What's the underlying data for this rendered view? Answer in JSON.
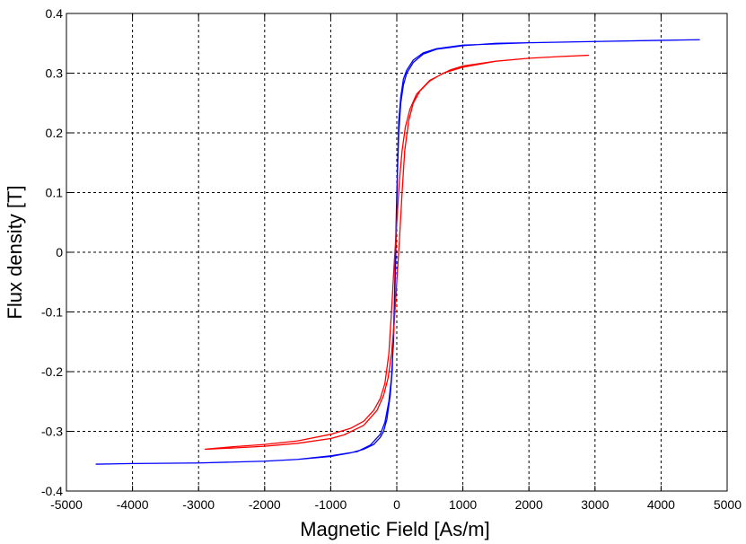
{
  "chart_data": {
    "type": "line",
    "title": "",
    "xlabel": "Magnetic Field [As/m]",
    "ylabel": "Flux density [T]",
    "xlim": [
      -5000,
      5000
    ],
    "ylim": [
      -0.4,
      0.4
    ],
    "x_ticks": [
      -5000,
      -4000,
      -3000,
      -2000,
      -1000,
      0,
      1000,
      2000,
      3000,
      4000,
      5000
    ],
    "y_ticks": [
      -0.4,
      -0.3,
      -0.2,
      -0.1,
      0,
      0.1,
      0.2,
      0.3,
      0.4
    ],
    "x_tick_labels": [
      "-5000",
      "-4000",
      "-3000",
      "-2000",
      "-1000",
      "0",
      "1000",
      "2000",
      "3000",
      "4000",
      "5000"
    ],
    "y_tick_labels": [
      "-0.4",
      "-0.3",
      "-0.2",
      "-0.1",
      "0",
      "0.1",
      "0.2",
      "0.3",
      "0.4"
    ],
    "grid": true,
    "grid_style": "dashed",
    "legend": "none",
    "series": [
      {
        "color": "#0000ff",
        "points": [
          [
            -4550,
            -0.355
          ],
          [
            -4000,
            -0.354
          ],
          [
            -3000,
            -0.353
          ],
          [
            -2000,
            -0.35
          ],
          [
            -1500,
            -0.347
          ],
          [
            -1000,
            -0.342
          ],
          [
            -700,
            -0.336
          ],
          [
            -500,
            -0.33
          ],
          [
            -350,
            -0.322
          ],
          [
            -250,
            -0.31
          ],
          [
            -200,
            -0.3
          ],
          [
            -150,
            -0.28
          ],
          [
            -100,
            -0.24
          ],
          [
            -70,
            -0.2
          ],
          [
            -40,
            -0.1
          ],
          [
            -20,
            0
          ],
          [
            0,
            0.1
          ],
          [
            30,
            0.2
          ],
          [
            60,
            0.25
          ],
          [
            100,
            0.28
          ],
          [
            150,
            0.3
          ],
          [
            250,
            0.318
          ],
          [
            400,
            0.332
          ],
          [
            600,
            0.34
          ],
          [
            1000,
            0.346
          ],
          [
            1500,
            0.35
          ],
          [
            2000,
            0.351
          ],
          [
            3000,
            0.353
          ],
          [
            4000,
            0.355
          ],
          [
            4580,
            0.356
          ],
          [
            4000,
            0.355
          ],
          [
            3000,
            0.353
          ],
          [
            2000,
            0.351
          ],
          [
            1000,
            0.347
          ],
          [
            600,
            0.341
          ],
          [
            400,
            0.334
          ],
          [
            250,
            0.322
          ],
          [
            150,
            0.305
          ],
          [
            100,
            0.29
          ],
          [
            60,
            0.26
          ],
          [
            30,
            0.22
          ],
          [
            10,
            0.14
          ],
          [
            -5,
            0.05
          ],
          [
            -25,
            -0.05
          ],
          [
            -50,
            -0.15
          ],
          [
            -80,
            -0.21
          ],
          [
            -120,
            -0.25
          ],
          [
            -180,
            -0.285
          ],
          [
            -250,
            -0.305
          ],
          [
            -400,
            -0.323
          ],
          [
            -600,
            -0.334
          ],
          [
            -1000,
            -0.341
          ],
          [
            -1500,
            -0.347
          ],
          [
            -2000,
            -0.35
          ],
          [
            -3000,
            -0.353
          ],
          [
            -4000,
            -0.354
          ],
          [
            -4550,
            -0.355
          ]
        ]
      },
      {
        "color": "#ff0000",
        "points": [
          [
            -2900,
            -0.33
          ],
          [
            -2500,
            -0.326
          ],
          [
            -2000,
            -0.322
          ],
          [
            -1500,
            -0.316
          ],
          [
            -1000,
            -0.305
          ],
          [
            -700,
            -0.295
          ],
          [
            -500,
            -0.283
          ],
          [
            -350,
            -0.265
          ],
          [
            -250,
            -0.245
          ],
          [
            -180,
            -0.22
          ],
          [
            -120,
            -0.17
          ],
          [
            -80,
            -0.1
          ],
          [
            -40,
            -0.02
          ],
          [
            0,
            0.05
          ],
          [
            40,
            0.12
          ],
          [
            80,
            0.17
          ],
          [
            130,
            0.21
          ],
          [
            200,
            0.24
          ],
          [
            300,
            0.265
          ],
          [
            500,
            0.288
          ],
          [
            800,
            0.305
          ],
          [
            1000,
            0.312
          ],
          [
            1500,
            0.32
          ],
          [
            2000,
            0.325
          ],
          [
            2500,
            0.328
          ],
          [
            2900,
            0.33
          ],
          [
            2500,
            0.328
          ],
          [
            2000,
            0.325
          ],
          [
            1500,
            0.32
          ],
          [
            1000,
            0.31
          ],
          [
            700,
            0.3
          ],
          [
            500,
            0.287
          ],
          [
            350,
            0.27
          ],
          [
            250,
            0.25
          ],
          [
            180,
            0.22
          ],
          [
            120,
            0.17
          ],
          [
            80,
            0.1
          ],
          [
            40,
            0.02
          ],
          [
            0,
            -0.05
          ],
          [
            -40,
            -0.12
          ],
          [
            -80,
            -0.17
          ],
          [
            -130,
            -0.21
          ],
          [
            -200,
            -0.24
          ],
          [
            -300,
            -0.265
          ],
          [
            -500,
            -0.29
          ],
          [
            -800,
            -0.306
          ],
          [
            -1000,
            -0.312
          ],
          [
            -1500,
            -0.32
          ],
          [
            -2000,
            -0.325
          ],
          [
            -2500,
            -0.328
          ],
          [
            -2900,
            -0.33
          ]
        ]
      }
    ]
  }
}
